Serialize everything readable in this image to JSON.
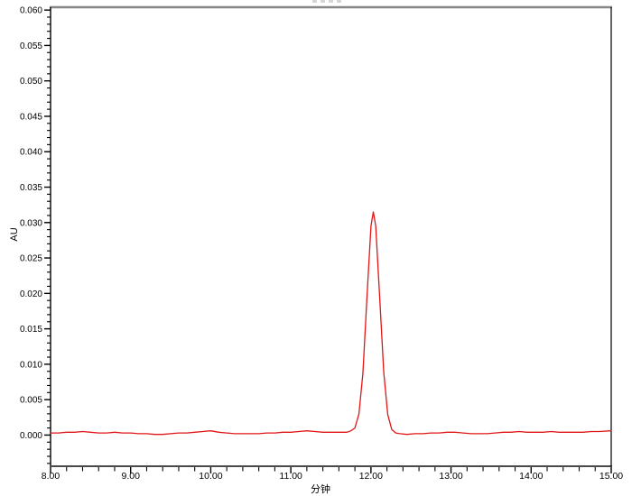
{
  "frame": {
    "background": "#ffffff",
    "top_border_color": "#878787",
    "bottom_axis_color": "#4a4a4a",
    "left_axis_color": "#000000",
    "right_border_color": "#000000",
    "tick_color": "#000000"
  },
  "chart_data": {
    "type": "line",
    "title": "",
    "xlabel": "分钟",
    "ylabel": "AU",
    "xlim": [
      8.0,
      15.0
    ],
    "ylim": [
      -0.0044,
      0.0604
    ],
    "grid": false,
    "legend": "none",
    "x_major_tick_step": 1.0,
    "x_minor_tick_step": 0.2,
    "y_major_tick_step": 0.005,
    "y_minor_tick_step": 0.001,
    "x_tick_values": [
      8,
      9,
      10,
      11,
      12,
      13,
      14,
      15
    ],
    "x_tick_labels": [
      "8.00",
      "9.00",
      "10.00",
      "11.00",
      "12.00",
      "13.00",
      "14.00",
      "15.00"
    ],
    "y_tick_values": [
      0.0,
      0.005,
      0.01,
      0.015,
      0.02,
      0.025,
      0.03,
      0.035,
      0.04,
      0.045,
      0.05,
      0.055,
      0.06
    ],
    "y_tick_labels": [
      "0.000",
      "0.005",
      "0.010",
      "0.015",
      "0.020",
      "0.025",
      "0.030",
      "0.035",
      "0.040",
      "0.045",
      "0.050",
      "0.055",
      "0.060"
    ],
    "peak": {
      "retention_time_min": 12.03,
      "apex_height_au": 0.0315,
      "baseline_au": 0.0004
    },
    "series": [
      {
        "name": "chromatogram-trace",
        "color": "#e01616",
        "points": [
          [
            8.0,
            0.0003
          ],
          [
            8.1,
            0.0003
          ],
          [
            8.2,
            0.0004
          ],
          [
            8.3,
            0.0004
          ],
          [
            8.4,
            0.0005
          ],
          [
            8.5,
            0.0004
          ],
          [
            8.6,
            0.0003
          ],
          [
            8.7,
            0.0003
          ],
          [
            8.8,
            0.0004
          ],
          [
            8.9,
            0.0003
          ],
          [
            9.0,
            0.0003
          ],
          [
            9.1,
            0.0002
          ],
          [
            9.2,
            0.0002
          ],
          [
            9.3,
            0.0001
          ],
          [
            9.4,
            0.0001
          ],
          [
            9.5,
            0.0002
          ],
          [
            9.6,
            0.0003
          ],
          [
            9.7,
            0.0003
          ],
          [
            9.8,
            0.0004
          ],
          [
            9.9,
            0.0005
          ],
          [
            10.0,
            0.0006
          ],
          [
            10.1,
            0.0004
          ],
          [
            10.2,
            0.0003
          ],
          [
            10.3,
            0.0002
          ],
          [
            10.4,
            0.0002
          ],
          [
            10.5,
            0.0002
          ],
          [
            10.6,
            0.0002
          ],
          [
            10.7,
            0.0003
          ],
          [
            10.8,
            0.0003
          ],
          [
            10.9,
            0.0004
          ],
          [
            11.0,
            0.0004
          ],
          [
            11.1,
            0.0005
          ],
          [
            11.2,
            0.0006
          ],
          [
            11.3,
            0.0005
          ],
          [
            11.4,
            0.0004
          ],
          [
            11.5,
            0.0004
          ],
          [
            11.6,
            0.0004
          ],
          [
            11.7,
            0.0004
          ],
          [
            11.75,
            0.0006
          ],
          [
            11.8,
            0.001
          ],
          [
            11.85,
            0.003
          ],
          [
            11.9,
            0.0088
          ],
          [
            11.95,
            0.0193
          ],
          [
            12.0,
            0.0295
          ],
          [
            12.03,
            0.0315
          ],
          [
            12.06,
            0.0295
          ],
          [
            12.11,
            0.0193
          ],
          [
            12.16,
            0.0088
          ],
          [
            12.21,
            0.0029
          ],
          [
            12.26,
            0.0008
          ],
          [
            12.31,
            0.0003
          ],
          [
            12.36,
            0.0002
          ],
          [
            12.45,
            0.0001
          ],
          [
            12.55,
            0.0002
          ],
          [
            12.65,
            0.0002
          ],
          [
            12.75,
            0.0003
          ],
          [
            12.85,
            0.0003
          ],
          [
            12.95,
            0.0004
          ],
          [
            13.05,
            0.0004
          ],
          [
            13.15,
            0.0003
          ],
          [
            13.25,
            0.0002
          ],
          [
            13.35,
            0.0002
          ],
          [
            13.45,
            0.0002
          ],
          [
            13.55,
            0.0003
          ],
          [
            13.65,
            0.0004
          ],
          [
            13.75,
            0.0004
          ],
          [
            13.85,
            0.0005
          ],
          [
            13.95,
            0.0004
          ],
          [
            14.05,
            0.0004
          ],
          [
            14.15,
            0.0004
          ],
          [
            14.25,
            0.0005
          ],
          [
            14.35,
            0.0004
          ],
          [
            14.45,
            0.0004
          ],
          [
            14.55,
            0.0004
          ],
          [
            14.65,
            0.0004
          ],
          [
            14.75,
            0.0005
          ],
          [
            14.85,
            0.0005
          ],
          [
            15.0,
            0.0006
          ]
        ]
      }
    ]
  }
}
